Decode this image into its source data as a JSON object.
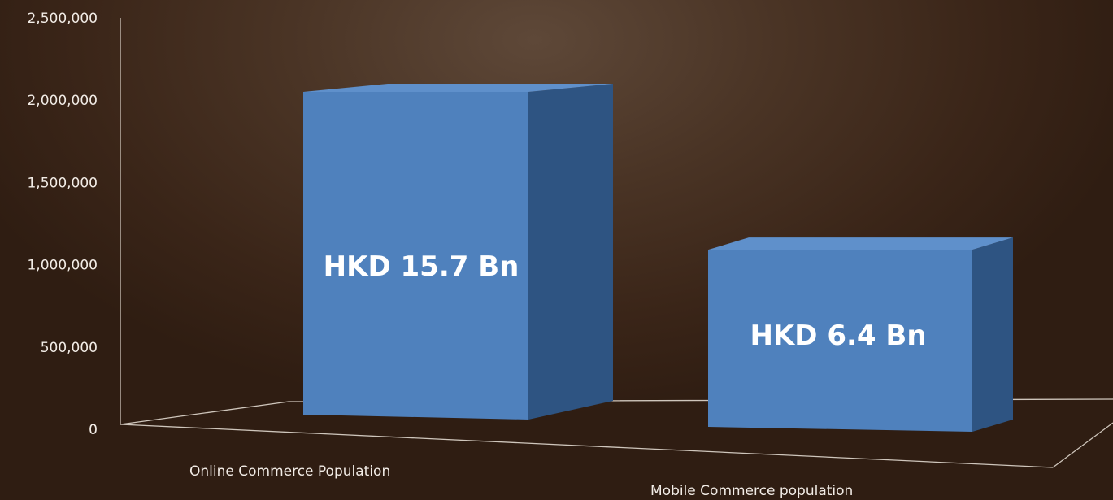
{
  "chart_data": {
    "type": "bar",
    "categories": [
      "Online Commerce Population",
      "Mobile Commerce population"
    ],
    "values": [
      1950000,
      1070000
    ],
    "data_labels": [
      "HKD 15.7 Bn",
      "HKD 6.4 Bn"
    ],
    "yticks": [
      "0",
      "500,000",
      "1,000,000",
      "1,500,000",
      "2,000,000",
      "2,500,000"
    ],
    "ylim": [
      0,
      2500000
    ],
    "grid": false,
    "style": "3d-column",
    "colors": {
      "front": "#4f81bd",
      "side": "#2e5482",
      "top": "#5f90cb"
    }
  }
}
